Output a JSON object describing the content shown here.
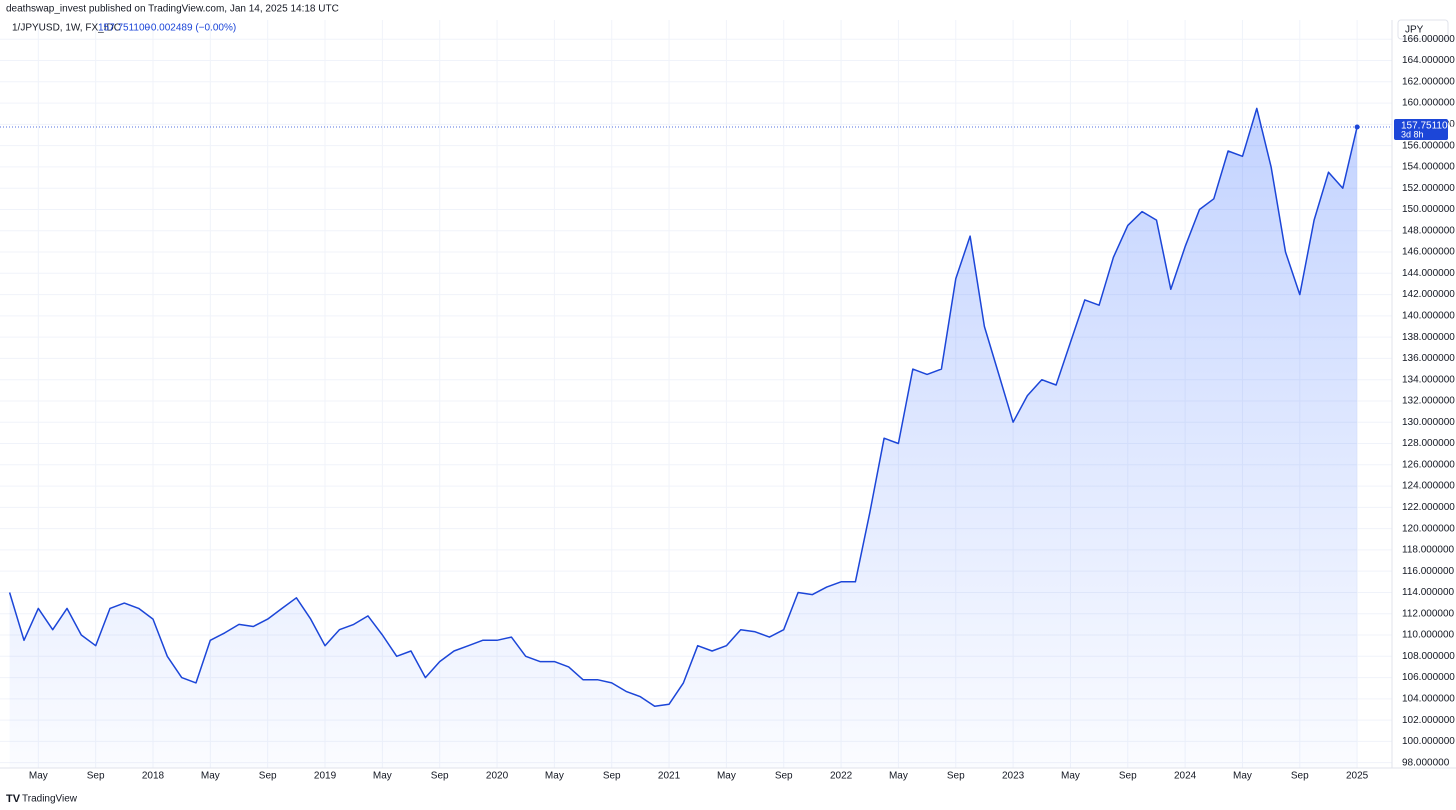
{
  "header": {
    "publisher": "deathswap_invest published on TradingView.com, Jan 14, 2025 14:18 UTC",
    "symbol": "1/JPYUSD, 1W, FX_IDC",
    "last": "157.751100",
    "change": "−0.002489 (−0.00%)",
    "currency_button": "JPY",
    "countdown": "3d 8h",
    "brand": "TradingView"
  },
  "chart_data": {
    "type": "area",
    "title": "1/JPYUSD, 1W, FX_IDC",
    "x": [
      "2017-03",
      "2017-04",
      "2017-05",
      "2017-06",
      "2017-07",
      "2017-08",
      "2017-09",
      "2017-10",
      "2017-11",
      "2017-12",
      "2018-01",
      "2018-02",
      "2018-03",
      "2018-04",
      "2018-05",
      "2018-06",
      "2018-07",
      "2018-08",
      "2018-09",
      "2018-10",
      "2018-11",
      "2018-12",
      "2019-01",
      "2019-02",
      "2019-03",
      "2019-04",
      "2019-05",
      "2019-06",
      "2019-07",
      "2019-08",
      "2019-09",
      "2019-10",
      "2019-11",
      "2019-12",
      "2020-01",
      "2020-02",
      "2020-03",
      "2020-04",
      "2020-05",
      "2020-06",
      "2020-07",
      "2020-08",
      "2020-09",
      "2020-10",
      "2020-11",
      "2020-12",
      "2021-01",
      "2021-02",
      "2021-03",
      "2021-04",
      "2021-05",
      "2021-06",
      "2021-07",
      "2021-08",
      "2021-09",
      "2021-10",
      "2021-11",
      "2021-12",
      "2022-01",
      "2022-02",
      "2022-03",
      "2022-04",
      "2022-05",
      "2022-06",
      "2022-07",
      "2022-08",
      "2022-09",
      "2022-10",
      "2022-11",
      "2022-12",
      "2023-01",
      "2023-02",
      "2023-03",
      "2023-04",
      "2023-05",
      "2023-06",
      "2023-07",
      "2023-08",
      "2023-09",
      "2023-10",
      "2023-11",
      "2023-12",
      "2024-01",
      "2024-02",
      "2024-03",
      "2024-04",
      "2024-05",
      "2024-06",
      "2024-07",
      "2024-08",
      "2024-09",
      "2024-10",
      "2024-11",
      "2024-12",
      "2025-01"
    ],
    "series": [
      {
        "name": "1/JPYUSD",
        "color": "#1c46d8",
        "values": [
          114.0,
          109.5,
          112.5,
          110.5,
          112.5,
          110.0,
          109.0,
          112.5,
          113.0,
          112.5,
          111.5,
          108.0,
          106.0,
          105.5,
          109.5,
          110.2,
          111.0,
          110.8,
          111.5,
          112.5,
          113.5,
          111.5,
          109.0,
          110.5,
          111.0,
          111.8,
          110.0,
          108.0,
          108.5,
          106.0,
          107.5,
          108.5,
          109.0,
          109.5,
          109.5,
          109.8,
          108.0,
          107.5,
          107.5,
          107.0,
          105.8,
          105.8,
          105.5,
          104.7,
          104.2,
          103.3,
          103.5,
          105.5,
          109.0,
          108.5,
          109.0,
          110.5,
          110.3,
          109.8,
          110.5,
          114.0,
          113.8,
          114.5,
          115.0,
          115.0,
          121.5,
          128.5,
          128.0,
          135.0,
          134.5,
          135.0,
          143.5,
          147.5,
          139.0,
          134.5,
          130.0,
          132.5,
          134.0,
          133.5,
          137.5,
          141.5,
          141.0,
          145.5,
          148.5,
          149.8,
          149.0,
          142.5,
          146.5,
          150.0,
          151.0,
          155.5,
          155.0,
          159.5,
          154.0,
          146.0,
          142.0,
          149.0,
          153.5,
          152.0,
          157.7511
        ]
      }
    ],
    "ylim": [
      97.5,
      166.4
    ],
    "yticks": [
      {
        "value": 98,
        "label": "98.000000"
      },
      {
        "value": 100,
        "label": "100.000000"
      },
      {
        "value": 102,
        "label": "102.000000"
      },
      {
        "value": 104,
        "label": "104.000000"
      },
      {
        "value": 106,
        "label": "106.000000"
      },
      {
        "value": 108,
        "label": "108.000000"
      },
      {
        "value": 110,
        "label": "110.000000"
      },
      {
        "value": 112,
        "label": "112.000000"
      },
      {
        "value": 114,
        "label": "114.000000"
      },
      {
        "value": 116,
        "label": "116.000000"
      },
      {
        "value": 118,
        "label": "118.000000"
      },
      {
        "value": 120,
        "label": "120.000000"
      },
      {
        "value": 122,
        "label": "122.000000"
      },
      {
        "value": 124,
        "label": "124.000000"
      },
      {
        "value": 126,
        "label": "126.000000"
      },
      {
        "value": 128,
        "label": "128.000000"
      },
      {
        "value": 130,
        "label": "130.000000"
      },
      {
        "value": 132,
        "label": "132.000000"
      },
      {
        "value": 134,
        "label": "134.000000"
      },
      {
        "value": 136,
        "label": "136.000000"
      },
      {
        "value": 138,
        "label": "138.000000"
      },
      {
        "value": 140,
        "label": "140.000000"
      },
      {
        "value": 142,
        "label": "142.000000"
      },
      {
        "value": 144,
        "label": "144.000000"
      },
      {
        "value": 146,
        "label": "146.000000"
      },
      {
        "value": 148,
        "label": "148.000000"
      },
      {
        "value": 150,
        "label": "150.000000"
      },
      {
        "value": 152,
        "label": "152.000000"
      },
      {
        "value": 154,
        "label": "154.000000"
      },
      {
        "value": 156,
        "label": "156.000000"
      },
      {
        "value": 158,
        "label": "158.000000"
      },
      {
        "value": 160,
        "label": "160.000000"
      },
      {
        "value": 162,
        "label": "162.000000"
      },
      {
        "value": 164,
        "label": "164.000000"
      },
      {
        "value": 166,
        "label": "166.000000"
      }
    ],
    "xticks": [
      {
        "value": "2017-05",
        "label": "May"
      },
      {
        "value": "2017-09",
        "label": "Sep"
      },
      {
        "value": "2018-01",
        "label": "2018"
      },
      {
        "value": "2018-05",
        "label": "May"
      },
      {
        "value": "2018-09",
        "label": "Sep"
      },
      {
        "value": "2019-01",
        "label": "2019"
      },
      {
        "value": "2019-05",
        "label": "May"
      },
      {
        "value": "2019-09",
        "label": "Sep"
      },
      {
        "value": "2020-01",
        "label": "2020"
      },
      {
        "value": "2020-05",
        "label": "May"
      },
      {
        "value": "2020-09",
        "label": "Sep"
      },
      {
        "value": "2021-01",
        "label": "2021"
      },
      {
        "value": "2021-05",
        "label": "May"
      },
      {
        "value": "2021-09",
        "label": "Sep"
      },
      {
        "value": "2022-01",
        "label": "2022"
      },
      {
        "value": "2022-05",
        "label": "May"
      },
      {
        "value": "2022-09",
        "label": "Sep"
      },
      {
        "value": "2023-01",
        "label": "2023"
      },
      {
        "value": "2023-05",
        "label": "May"
      },
      {
        "value": "2023-09",
        "label": "Sep"
      },
      {
        "value": "2024-01",
        "label": "2024"
      },
      {
        "value": "2024-05",
        "label": "May"
      },
      {
        "value": "2024-09",
        "label": "Sep"
      },
      {
        "value": "2025-01",
        "label": "2025"
      }
    ],
    "grid": true
  }
}
